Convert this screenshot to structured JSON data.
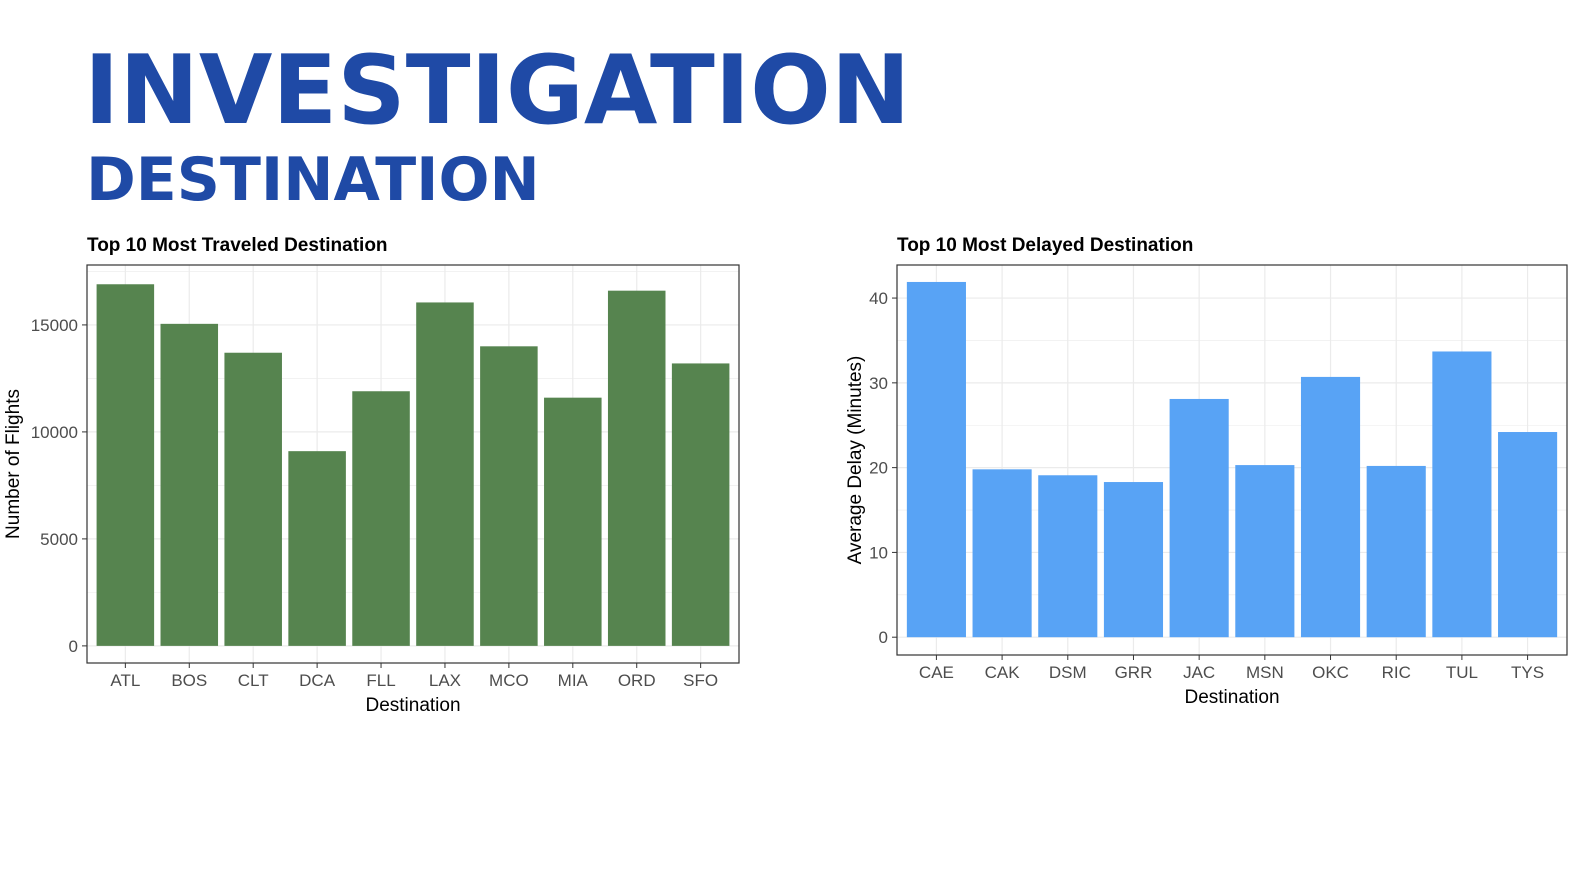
{
  "slide": {
    "title": "INVESTIGATION",
    "subtitle": "DESTINATION"
  },
  "colors": {
    "title": "#1f4aa6",
    "left_bars": "#56844f",
    "right_bars": "#58a3f5",
    "grid": "#ebebeb",
    "panel_border": "#333333"
  },
  "chart_data": [
    {
      "type": "bar",
      "title": "Top 10 Most Traveled Destination",
      "xlabel": "Destination",
      "ylabel": "Number of Flights",
      "categories": [
        "ATL",
        "BOS",
        "CLT",
        "DCA",
        "FLL",
        "LAX",
        "MCO",
        "MIA",
        "ORD",
        "SFO"
      ],
      "values": [
        16900,
        15050,
        13700,
        9100,
        11900,
        16050,
        14000,
        11600,
        16600,
        13200
      ],
      "yticks": [
        0,
        5000,
        10000,
        15000
      ],
      "ylim": [
        -800,
        17800
      ],
      "grid": true,
      "color": "#56844f"
    },
    {
      "type": "bar",
      "title": "Top 10 Most Delayed Destination",
      "xlabel": "Destination",
      "ylabel": "Average Delay (Minutes)",
      "categories": [
        "CAE",
        "CAK",
        "DSM",
        "GRR",
        "JAC",
        "MSN",
        "OKC",
        "RIC",
        "TUL",
        "TYS"
      ],
      "values": [
        41.9,
        19.8,
        19.1,
        18.3,
        28.1,
        20.3,
        30.7,
        20.2,
        33.7,
        24.2
      ],
      "yticks": [
        0,
        10,
        20,
        30,
        40
      ],
      "ylim": [
        -2.1,
        43.9
      ],
      "grid": true,
      "color": "#58a3f5"
    }
  ]
}
